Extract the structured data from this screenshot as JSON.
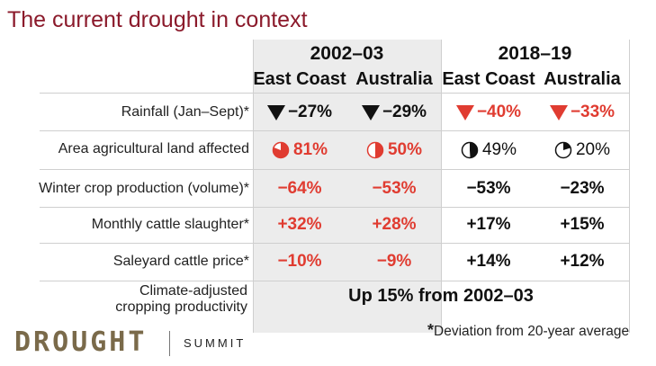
{
  "title": "The current drought in context",
  "periods": [
    "2002–03",
    "2018–19"
  ],
  "columns": [
    "East Coast",
    "Australia",
    "East Coast",
    "Australia"
  ],
  "rows": [
    {
      "label": "Rainfall (Jan–Sept)*",
      "values": [
        "−27%",
        "−29%",
        "−40%",
        "−33%"
      ],
      "icon": "triangle-down-icon"
    },
    {
      "label": "Area agricultural land affected",
      "values": [
        "81%",
        "50%",
        "49%",
        "20%"
      ],
      "icon": "pie-icon",
      "fractions": [
        0.81,
        0.5,
        0.49,
        0.2
      ]
    },
    {
      "label": "Winter crop production (volume)*",
      "values": [
        "−64%",
        "−53%",
        "−53%",
        "−23%"
      ]
    },
    {
      "label": "Monthly cattle slaughter*",
      "values": [
        "+32%",
        "+28%",
        "+17%",
        "+15%"
      ]
    },
    {
      "label": "Saleyard cattle price*",
      "values": [
        "−10%",
        "−9%",
        "+14%",
        "+12%"
      ]
    }
  ],
  "climate": {
    "label_line1": "Climate-adjusted",
    "label_line2": "cropping productivity",
    "value": "Up 15% from 2002–03"
  },
  "footnote": {
    "star": "*",
    "text": "Deviation from 20-year average"
  },
  "logo": {
    "word1": "DROUGHT",
    "word2": "SUMMIT"
  },
  "colors": {
    "accent": "#e03c31",
    "title": "#8b1a2b",
    "text": "#111111"
  }
}
